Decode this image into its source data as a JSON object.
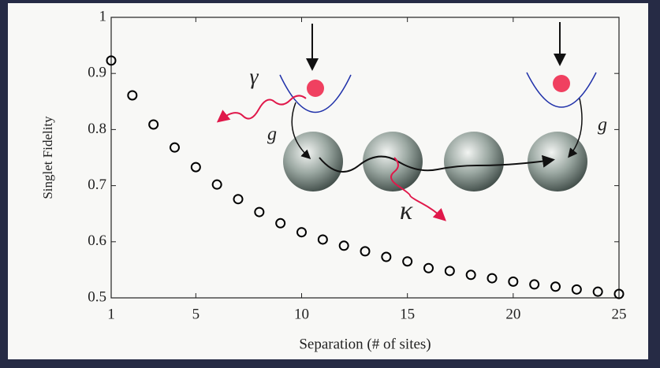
{
  "chart_data": {
    "type": "scatter",
    "x_label": "Separation (# of sites)",
    "y_label": "Singlet Fidelity",
    "x": [
      1,
      2,
      3,
      4,
      5,
      6,
      7,
      8,
      9,
      10,
      11,
      12,
      13,
      14,
      15,
      16,
      17,
      18,
      19,
      20,
      21,
      22,
      23,
      24,
      25
    ],
    "values": [
      0.923,
      0.861,
      0.809,
      0.768,
      0.733,
      0.702,
      0.676,
      0.653,
      0.633,
      0.617,
      0.604,
      0.593,
      0.583,
      0.573,
      0.565,
      0.553,
      0.548,
      0.541,
      0.535,
      0.529,
      0.524,
      0.52,
      0.515,
      0.511,
      0.507
    ],
    "color": "#000000",
    "xlim": [
      1,
      25
    ],
    "xticks": [
      1,
      5,
      10,
      15,
      20,
      25
    ],
    "ylim": [
      0.5,
      1
    ],
    "yticks": [
      0.5,
      0.6,
      0.7,
      0.8,
      0.9,
      1
    ],
    "annotations": [
      "γ",
      "g",
      "g",
      "κ"
    ]
  }
}
